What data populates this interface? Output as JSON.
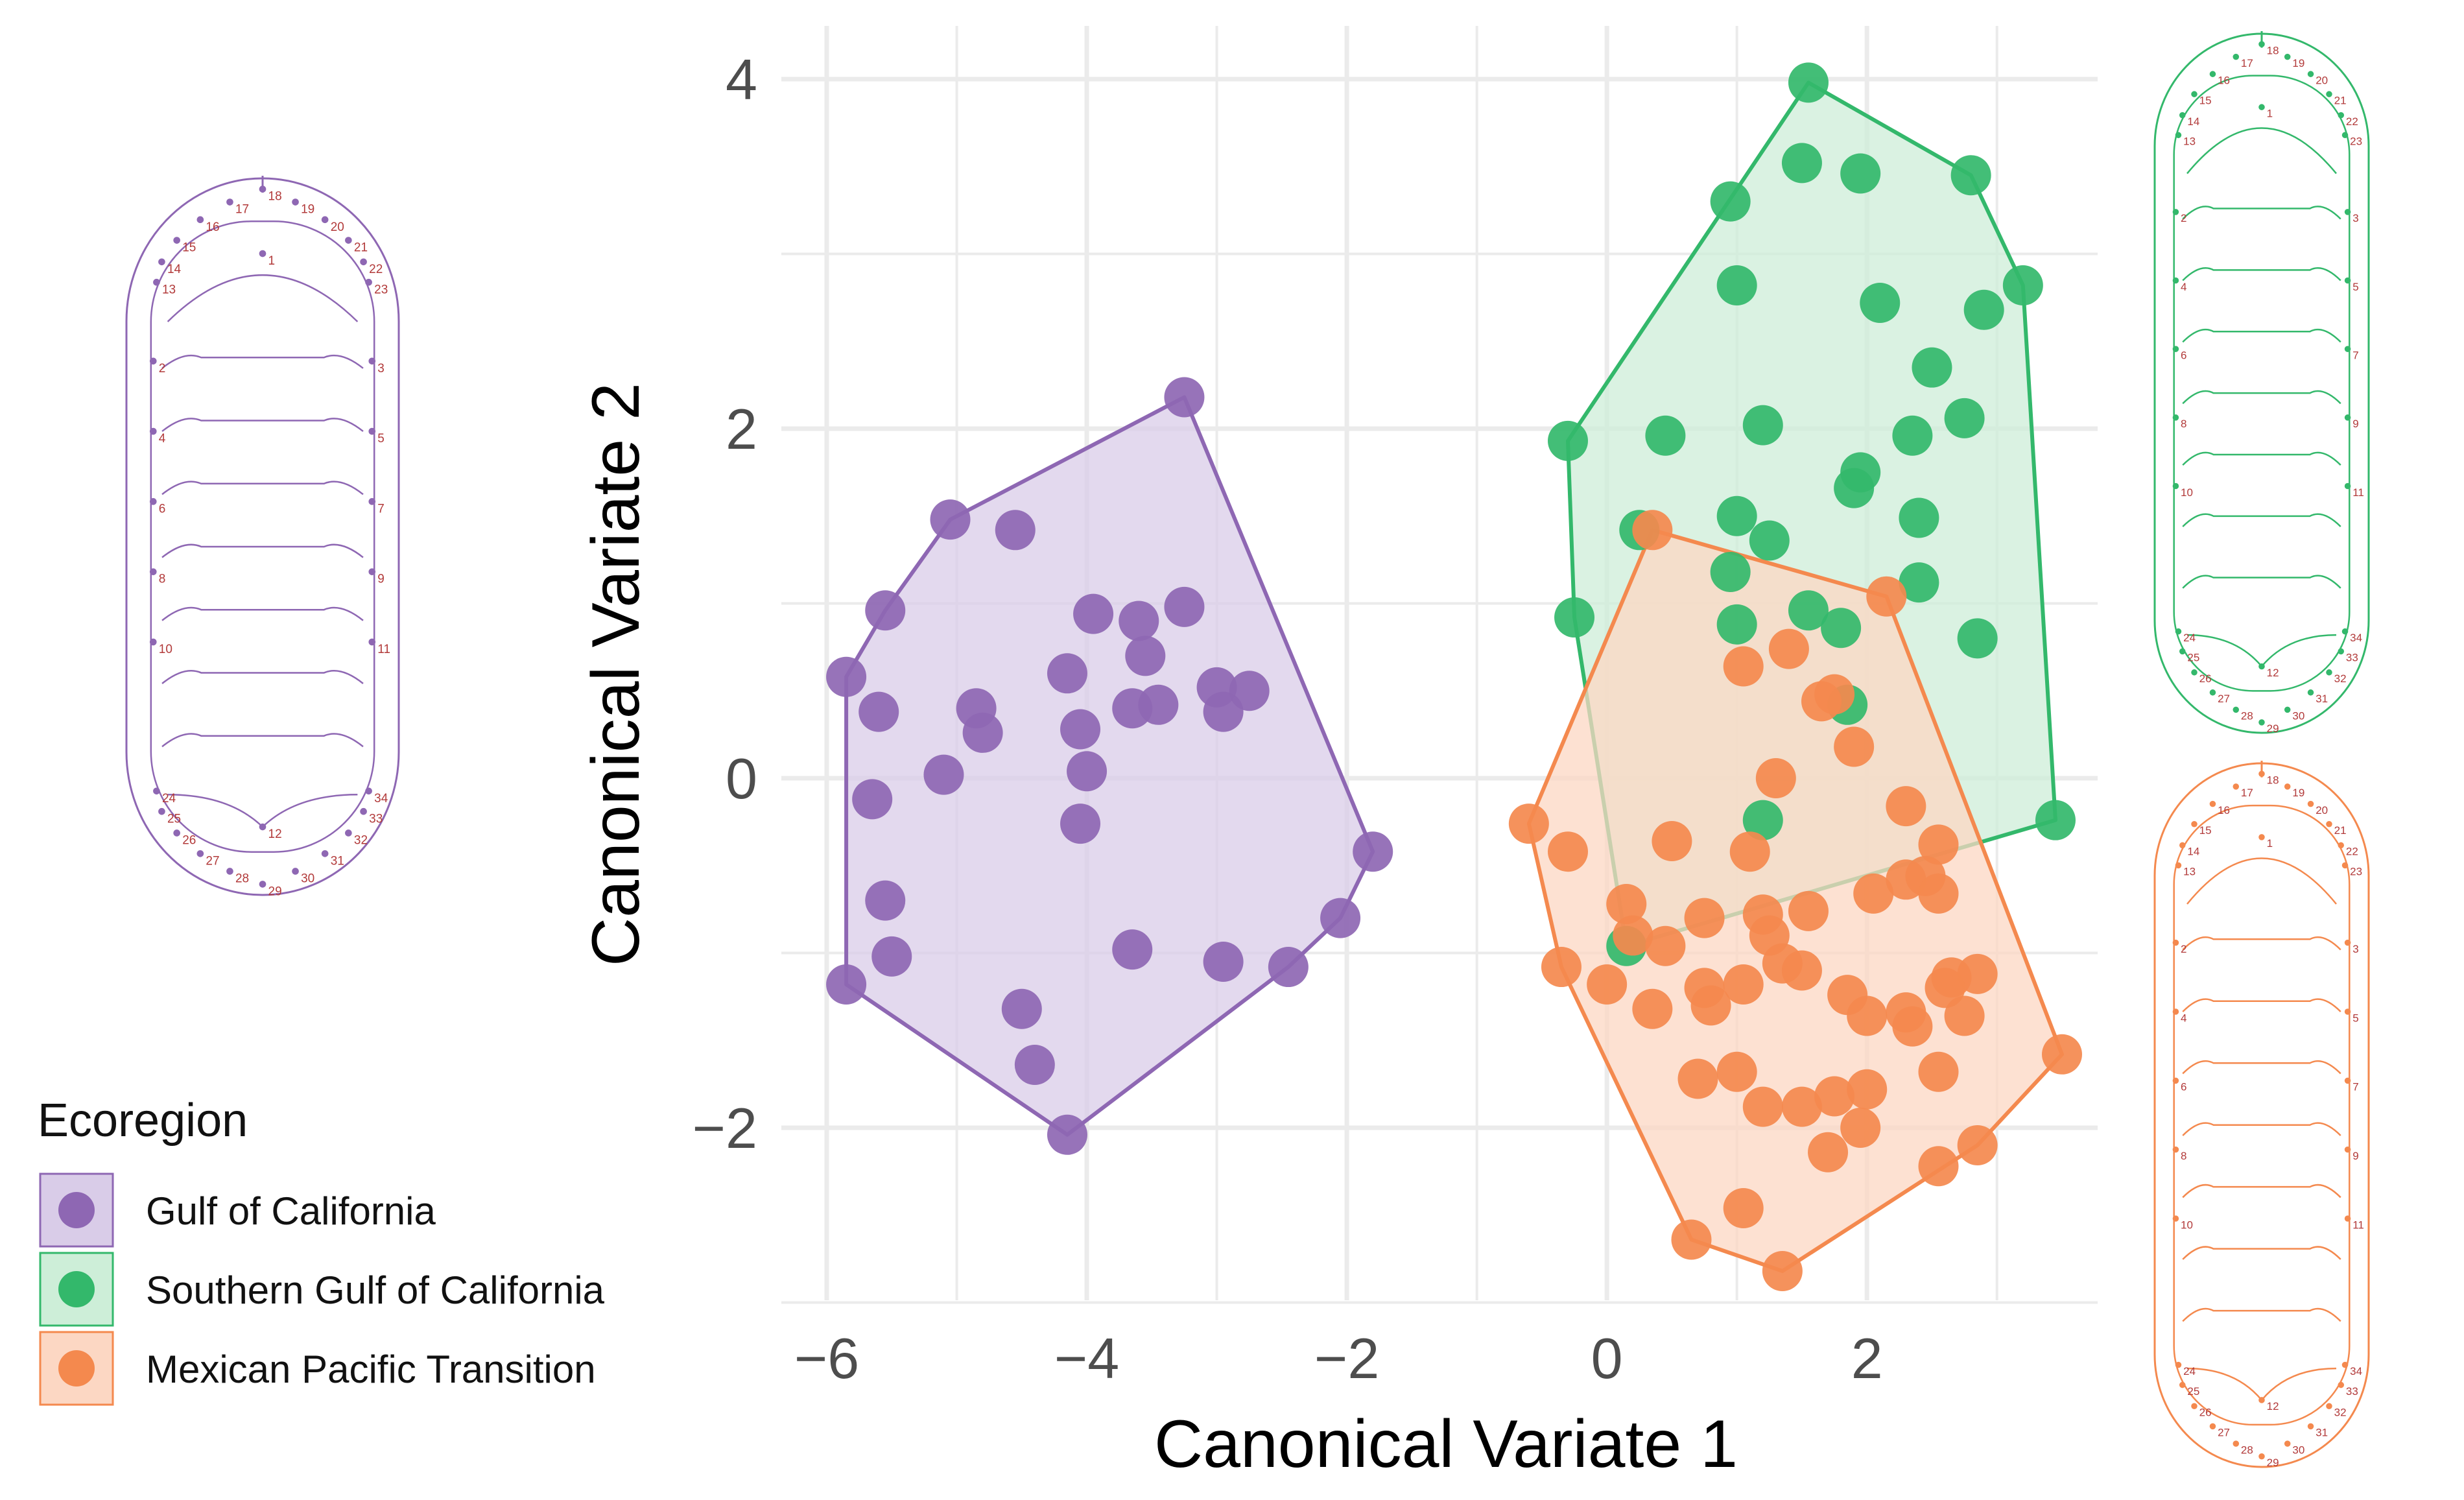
{
  "chart_data": {
    "type": "scatter",
    "title": "",
    "xlabel": "Canonical Variate 1",
    "ylabel": "Canonical Variate 2",
    "xlim": [
      -6.3,
      3.9
    ],
    "ylim": [
      -3.0,
      4.3
    ],
    "x_ticks": [
      -6,
      -4,
      -2,
      0,
      2
    ],
    "y_ticks": [
      -2,
      0,
      2,
      4
    ],
    "x_tick_labels": [
      "−6",
      "−4",
      "−2",
      "0",
      "2"
    ],
    "y_tick_labels": [
      "−2",
      "0",
      "2",
      "4"
    ],
    "grid": true,
    "legend_title": "Ecoregion",
    "legend_position": "left-bottom",
    "series": [
      {
        "name": "Gulf of California",
        "color": "#8e67b3",
        "fill": "#d9cce8",
        "x": [
          -3.25,
          -5.05,
          -4.55,
          -5.55,
          -5.85,
          -5.6,
          -4.85,
          -4.8,
          -5.1,
          -5.65,
          -5.55,
          -5.5,
          -3.95,
          -4.15,
          -4.05,
          -4.0,
          -4.05,
          -3.6,
          -3.55,
          -3.45,
          -3.25,
          -3.0,
          -2.95,
          -2.75,
          -1.8,
          -2.05,
          -2.45,
          -2.95,
          -3.65,
          -4.5,
          -4.4,
          -4.15,
          -5.85,
          -3.65
        ],
        "y": [
          2.18,
          1.48,
          1.42,
          0.96,
          0.58,
          0.38,
          0.4,
          0.26,
          0.02,
          -0.12,
          -0.7,
          -1.02,
          0.94,
          0.6,
          0.28,
          0.04,
          -0.26,
          0.9,
          0.7,
          0.42,
          0.98,
          0.52,
          0.38,
          0.5,
          -0.42,
          -0.8,
          -1.08,
          -1.05,
          -0.98,
          -1.32,
          -1.64,
          -2.04,
          -1.18,
          0.4
        ]
      },
      {
        "name": "Southern Gulf of California",
        "color": "#33b86b",
        "fill": "#cdeed8",
        "x": [
          1.55,
          1.5,
          1.95,
          2.8,
          0.95,
          1.0,
          2.1,
          3.2,
          2.9,
          2.5,
          -0.3,
          0.45,
          1.2,
          2.35,
          2.75,
          1.95,
          1.9,
          1.0,
          1.25,
          2.4,
          0.25,
          2.4,
          -0.25,
          0.95,
          1.0,
          1.55,
          1.8,
          1.85,
          2.85,
          3.45,
          1.2,
          0.15
        ],
        "y": [
          3.98,
          3.52,
          3.46,
          3.45,
          3.3,
          2.82,
          2.72,
          2.82,
          2.68,
          2.35,
          1.93,
          1.96,
          2.02,
          1.96,
          2.06,
          1.75,
          1.66,
          1.5,
          1.36,
          1.49,
          1.42,
          1.12,
          0.92,
          1.18,
          0.88,
          0.96,
          0.86,
          0.42,
          0.8,
          -0.24,
          -0.24,
          -0.96
        ]
      },
      {
        "name": "Mexican Pacific Transition",
        "color": "#f4894e",
        "fill": "#fcd7c3",
        "x": [
          0.35,
          2.15,
          1.4,
          1.05,
          1.75,
          1.65,
          1.3,
          2.3,
          2.55,
          0.5,
          1.1,
          -0.6,
          -0.3,
          0.15,
          0.75,
          1.2,
          1.55,
          2.05,
          2.3,
          2.45,
          2.55,
          0.2,
          0.45,
          1.25,
          1.35,
          -0.35,
          0.0,
          0.35,
          0.75,
          0.8,
          1.05,
          1.5,
          1.85,
          2.0,
          2.3,
          2.65,
          2.85,
          2.55,
          2.75,
          0.7,
          1.0,
          1.2,
          1.5,
          1.75,
          1.95,
          2.0,
          2.55,
          3.5,
          2.85,
          2.6,
          0.65,
          1.05,
          1.7,
          1.35,
          2.35,
          1.9
        ],
        "y": [
          1.42,
          1.04,
          0.74,
          0.64,
          0.48,
          0.44,
          0.0,
          -0.16,
          -0.38,
          -0.36,
          -0.42,
          -0.26,
          -0.42,
          -0.72,
          -0.8,
          -0.78,
          -0.76,
          -0.66,
          -0.58,
          -0.56,
          -0.66,
          -0.9,
          -0.96,
          -0.9,
          -1.06,
          -1.08,
          -1.18,
          -1.32,
          -1.2,
          -1.3,
          -1.18,
          -1.1,
          -1.24,
          -1.36,
          -1.34,
          -1.14,
          -1.12,
          -1.68,
          -1.36,
          -1.72,
          -1.68,
          -1.88,
          -1.88,
          -1.82,
          -2.0,
          -1.78,
          -2.22,
          -1.58,
          -2.1,
          -1.2,
          -2.64,
          -2.46,
          -2.14,
          -2.82,
          -1.42,
          0.18
        ]
      }
    ]
  },
  "legend": {
    "title": "Ecoregion",
    "items": [
      "Gulf of California",
      "Southern Gulf of California",
      "Mexican Pacific Transition"
    ]
  },
  "outline_figures": {
    "landmark_labels": [
      "1",
      "2",
      "3",
      "4",
      "5",
      "6",
      "7",
      "8",
      "9",
      "10",
      "11",
      "12",
      "13",
      "14",
      "15",
      "16",
      "17",
      "18",
      "19",
      "20",
      "21",
      "22",
      "23",
      "24",
      "25",
      "26",
      "27",
      "28",
      "29",
      "30",
      "31",
      "32",
      "33",
      "34"
    ],
    "colors": [
      "#8e67b3",
      "#33b86b",
      "#f4894e"
    ]
  }
}
